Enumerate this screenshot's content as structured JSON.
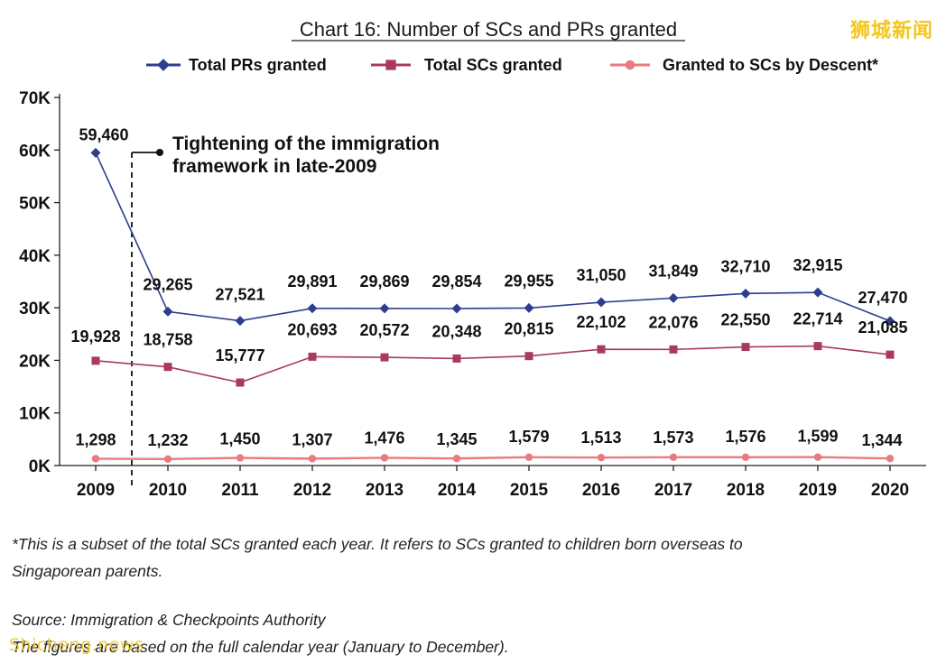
{
  "watermark": {
    "cn": "狮城新闻",
    "en": "Shicheng.news"
  },
  "chart_data": {
    "type": "line",
    "title": "Chart 16: Number of SCs and PRs granted",
    "xlabel": "",
    "ylabel": "",
    "categories": [
      "2009",
      "2010",
      "2011",
      "2012",
      "2013",
      "2014",
      "2015",
      "2016",
      "2017",
      "2018",
      "2019",
      "2020"
    ],
    "ylim": [
      0,
      70000
    ],
    "yticks": [
      0,
      10000,
      20000,
      30000,
      40000,
      50000,
      60000,
      70000
    ],
    "ytick_labels": [
      "0K",
      "10K",
      "20K",
      "30K",
      "40K",
      "50K",
      "60K",
      "70K"
    ],
    "legend_position": "top",
    "series": [
      {
        "name": "Total PRs granted",
        "color": "#2e3d8f",
        "marker": "diamond",
        "values": [
          59460,
          29265,
          27521,
          29891,
          29869,
          29854,
          29955,
          31050,
          31849,
          32710,
          32915,
          27470
        ],
        "labels": [
          "59,460",
          "29,265",
          "27,521",
          "29,891",
          "29,869",
          "29,854",
          "29,955",
          "31,050",
          "31,849",
          "32,710",
          "32,915",
          "27,470"
        ]
      },
      {
        "name": "Total SCs granted",
        "color": "#a83a5c",
        "marker": "square",
        "values": [
          19928,
          18758,
          15777,
          20693,
          20572,
          20348,
          20815,
          22102,
          22076,
          22550,
          22714,
          21085
        ],
        "labels": [
          "19,928",
          "18,758",
          "15,777",
          "20,693",
          "20,572",
          "20,348",
          "20,815",
          "22,102",
          "22,076",
          "22,550",
          "22,714",
          "21,085"
        ]
      },
      {
        "name": "Granted to SCs by Descent*",
        "color": "#e87a80",
        "marker": "circle",
        "values": [
          1298,
          1232,
          1450,
          1307,
          1476,
          1345,
          1579,
          1513,
          1573,
          1576,
          1599,
          1344
        ],
        "labels": [
          "1,298",
          "1,232",
          "1,450",
          "1,307",
          "1,476",
          "1,345",
          "1,579",
          "1,513",
          "1,573",
          "1,576",
          "1,599",
          "1,344"
        ]
      }
    ],
    "annotation": {
      "line1": "Tightening of the immigration",
      "line2": "framework in late-2009"
    }
  },
  "footnotes": {
    "subset_line1": "*This is a subset of the total SCs granted each year. It refers to SCs granted to children born overseas to",
    "subset_line2": "Singaporean parents.",
    "source": "Source: Immigration & Checkpoints Authority",
    "calendar": "The figures are based on the full calendar year (January to December)."
  }
}
